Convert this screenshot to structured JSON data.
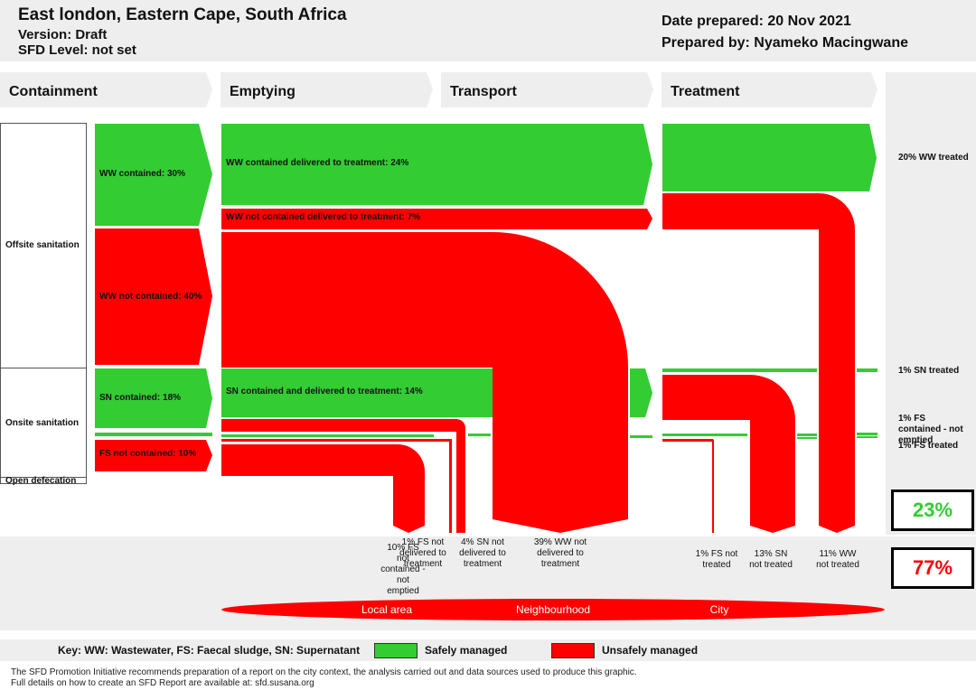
{
  "header": {
    "title": "East london, Eastern Cape, South Africa",
    "version": "Version: Draft",
    "sfd_level": "SFD Level: not set",
    "date": "Date prepared: 20 Nov 2021",
    "prepared_by": "Prepared by: Nyameko Macingwane"
  },
  "stages": [
    "Containment",
    "Emptying",
    "Transport",
    "Treatment"
  ],
  "categories": {
    "offsite": "Offsite sanitation",
    "onsite": "Onsite sanitation",
    "open": "Open defecation"
  },
  "flows": {
    "ww_contained": "WW contained: 30%",
    "ww_not_contained": "WW not contained: 40%",
    "sn_contained": "SN contained: 18%",
    "fs_not_contained": "FS not contained: 10%",
    "ww_cont_delivered": "WW contained delivered to treatment: 24%",
    "ww_not_cont_delivered": "WW not contained delivered to treatment: 7%",
    "sn_cont_delivered": "SN contained and delivered to treatment: 14%"
  },
  "outcomes": {
    "ww_treated": "20% WW treated",
    "sn_treated": "1% SN treated",
    "fs_contained_not_emptied": "1% FS contained - not emptied",
    "fs_treated": "1% FS treated"
  },
  "losses": {
    "fs_not_contained_not_emptied": "10% FS not contained - not emptied",
    "fs_not_delivered": "1% FS not delivered to treatment",
    "sn_not_delivered": "4% SN not delivered to treatment",
    "ww_not_delivered": "39% WW not delivered to treatment",
    "fs_not_treated": "1% FS not treated",
    "sn_not_treated": "13% SN not treated",
    "ww_not_treated": "11% WW not treated"
  },
  "totals": {
    "safe": "23%",
    "unsafe": "77%",
    "safe_color": "#33cc33",
    "unsafe_color": "#ff0000"
  },
  "areas": [
    "Local area",
    "Neighbourhood",
    "City"
  ],
  "key": {
    "text": "Key: WW: Wastewater, FS: Faecal sludge, SN: Supernatant",
    "safe": "Safely managed",
    "unsafe": "Unsafely managed"
  },
  "footer": {
    "line1": "The SFD Promotion Initiative recommends preparation of a report on the city context, the analysis carried out and data sources used to produce this graphic.",
    "line2": "Full details on how to create an SFD Report are available at: sfd.susana.org"
  }
}
